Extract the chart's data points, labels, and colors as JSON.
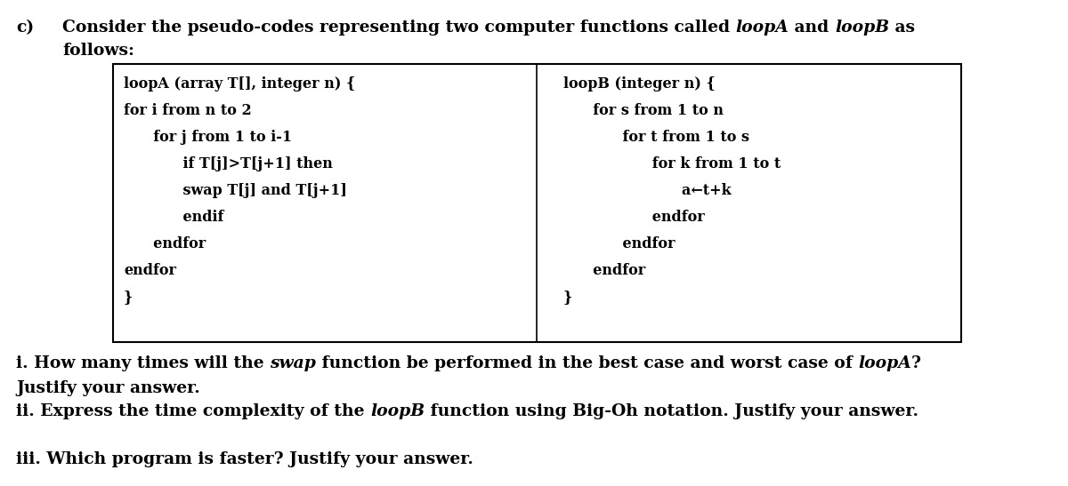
{
  "bg_color": "#ffffff",
  "loopA_lines": [
    [
      "loopA (array T[], integer n) {",
      0
    ],
    [
      "for i from n to 2",
      0
    ],
    [
      "  for j from 1 to i-1",
      1
    ],
    [
      "    if T[j]>T[j+1] then",
      2
    ],
    [
      "    swap T[j] and T[j+1]",
      2
    ],
    [
      "    endif",
      2
    ],
    [
      "  endfor",
      1
    ],
    [
      "endfor",
      0
    ],
    [
      "}",
      0
    ]
  ],
  "loopB_lines": [
    [
      "loopB (integer n) {",
      0
    ],
    [
      "  for s from 1 to n",
      1
    ],
    [
      "    for t from 1 to s",
      2
    ],
    [
      "      for k from 1 to t",
      3
    ],
    [
      "        a←t+k",
      4
    ],
    [
      "      endfor",
      3
    ],
    [
      "    endfor",
      2
    ],
    [
      "  endfor",
      1
    ],
    [
      "}",
      0
    ]
  ]
}
